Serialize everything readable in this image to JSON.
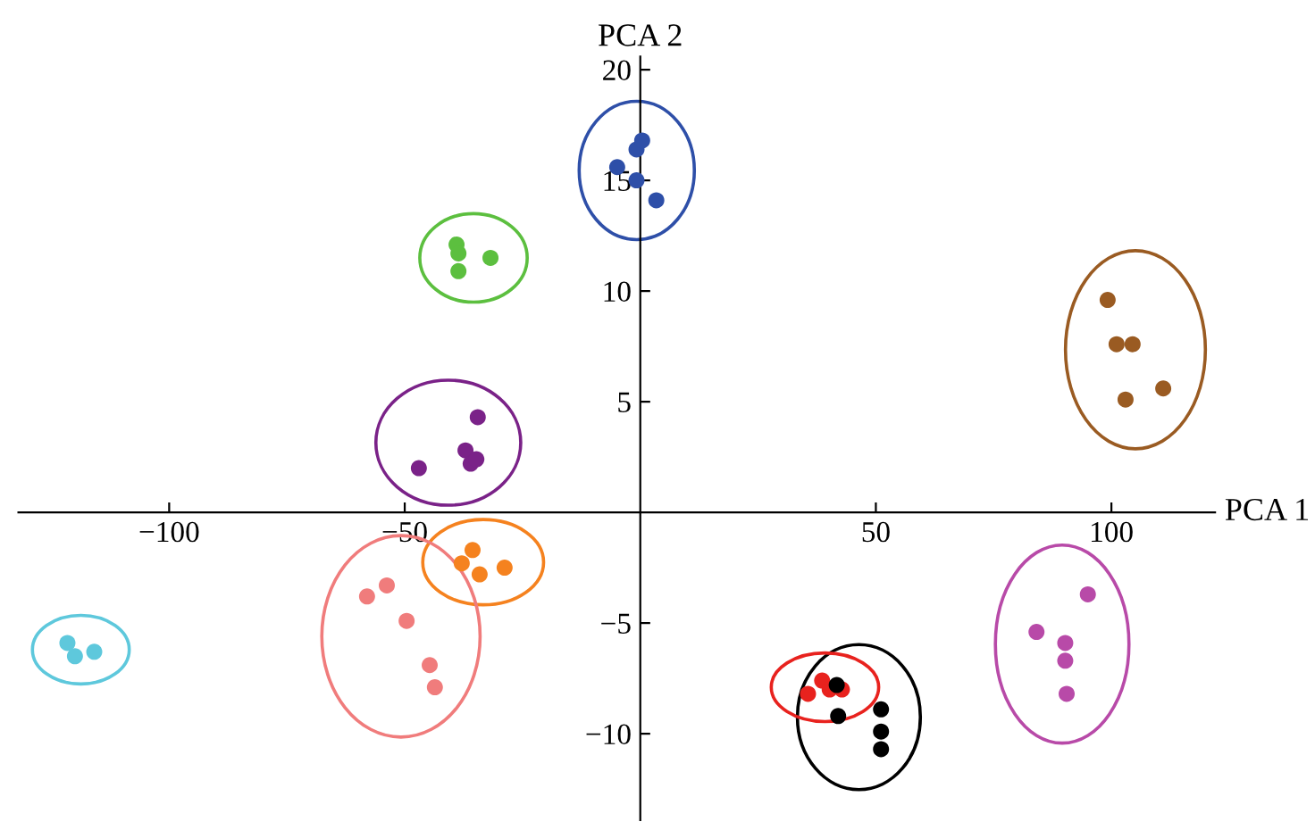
{
  "chart_data": {
    "type": "scatter",
    "xlabel": "PCA 1",
    "ylabel": "PCA 2",
    "xlim": [
      -132,
      122
    ],
    "ylim": [
      -13.9,
      20.6
    ],
    "xticks": [
      {
        "value": -100,
        "label": "−100"
      },
      {
        "value": -50,
        "label": "−50"
      },
      50,
      100
    ],
    "yticks": [
      {
        "value": -10,
        "label": "−10"
      },
      {
        "value": -5,
        "label": "−5"
      },
      5,
      10,
      15,
      20
    ],
    "grid": false,
    "legend": false,
    "marker": "circle",
    "series": [
      {
        "color": "#2e4fa8",
        "x": [
          -4.9,
          -0.8,
          0.4,
          -0.8,
          3.4
        ],
        "values": [
          15.6,
          16.4,
          16.8,
          15.0,
          14.1
        ]
      },
      {
        "color": "#5cbf3f",
        "x": [
          -39,
          -38.6,
          -38.6,
          -31.8
        ],
        "values": [
          12.1,
          11.7,
          10.9,
          11.5
        ]
      },
      {
        "color": "#7a2288",
        "x": [
          -34.5,
          -37.1,
          -36,
          -34.8,
          -47
        ],
        "values": [
          4.3,
          2.8,
          2.2,
          2.4,
          2.0
        ]
      },
      {
        "color": "#f5821f",
        "x": [
          -37.9,
          -35.6,
          -34.1,
          -28.8
        ],
        "values": [
          -2.3,
          -1.7,
          -2.8,
          -2.5
        ]
      },
      {
        "color": "#f07c7c",
        "x": [
          -58,
          -53.8,
          -49.6,
          -44.7,
          -43.6
        ],
        "values": [
          -3.8,
          -3.3,
          -4.9,
          -6.9,
          -7.9
        ]
      },
      {
        "color": "#5ec8dc",
        "x": [
          -121.6,
          -120,
          -115.9
        ],
        "values": [
          -5.9,
          -6.5,
          -6.3
        ]
      },
      {
        "color": "#000000",
        "x": [
          41.7,
          42,
          51.1,
          51.1,
          51.1
        ],
        "values": [
          -7.8,
          -9.2,
          -8.9,
          -9.9,
          -10.7
        ]
      },
      {
        "color": "#e8221e",
        "x": [
          35.6,
          38.6,
          40.2,
          42.8
        ],
        "values": [
          -8.2,
          -7.6,
          -8.0,
          -8.0
        ]
      },
      {
        "color": "#b84aa8",
        "x": [
          95,
          84.1,
          90.2,
          90.2,
          90.5
        ],
        "values": [
          -3.7,
          -5.4,
          -5.9,
          -6.7,
          -8.2
        ]
      },
      {
        "color": "#9a5b22",
        "x": [
          99.2,
          101.1,
          104.5,
          103,
          111
        ],
        "values": [
          9.6,
          7.6,
          7.6,
          5.1,
          5.6
        ]
      }
    ]
  }
}
